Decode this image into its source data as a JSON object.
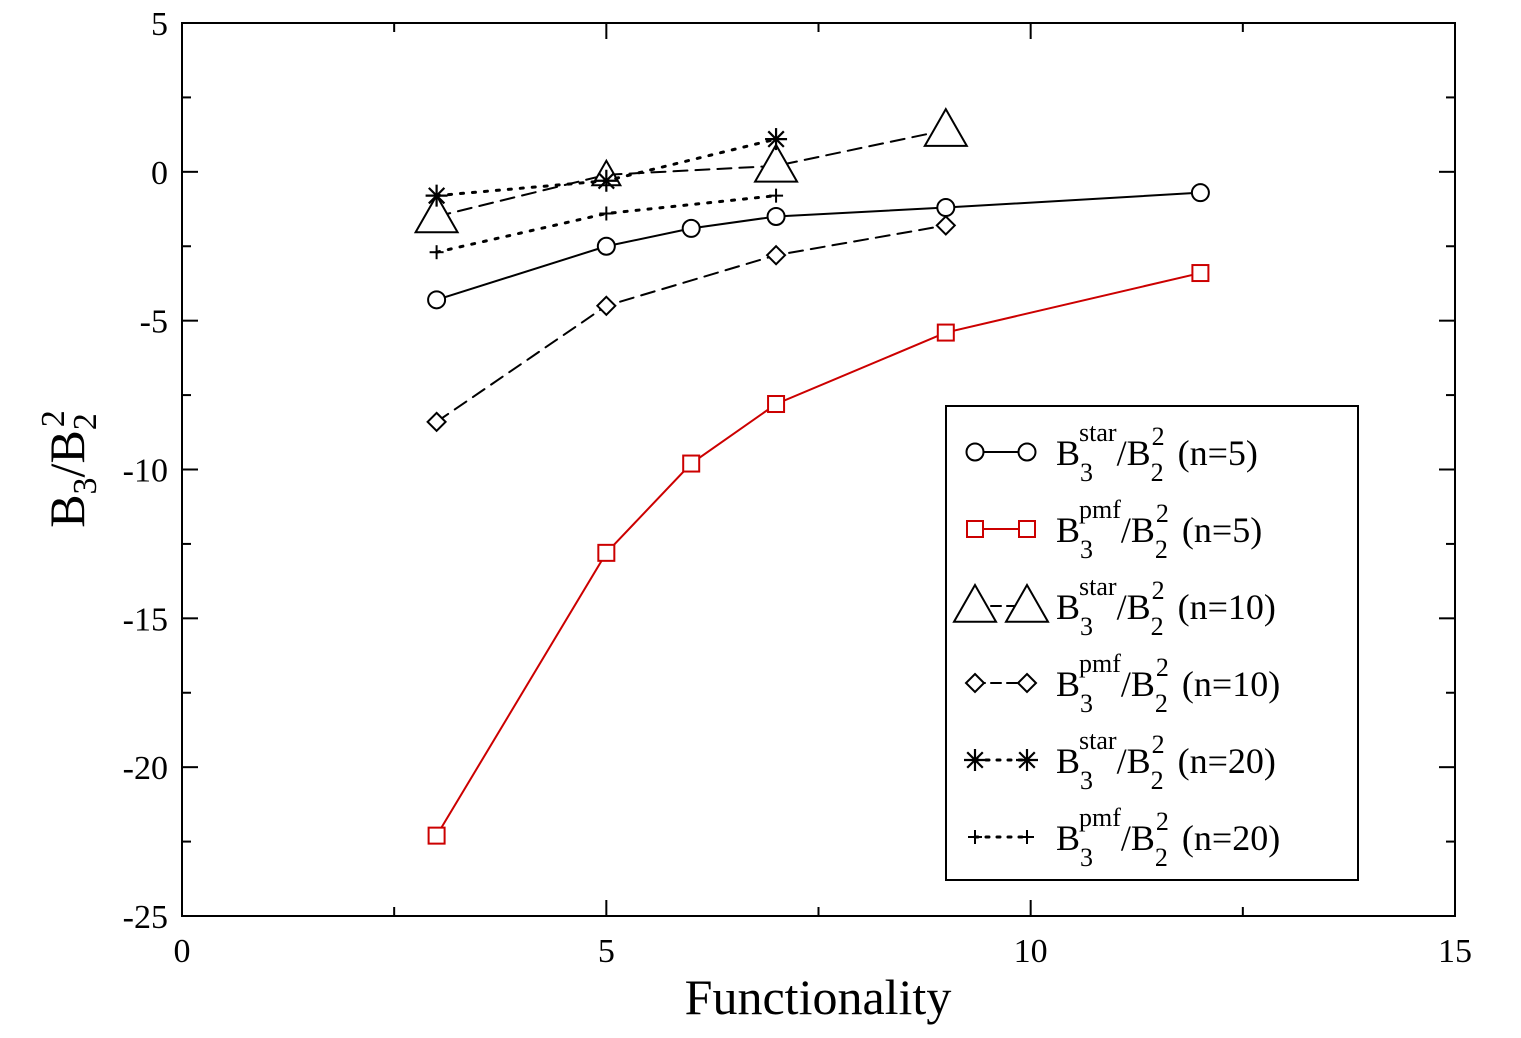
{
  "chart_data": {
    "type": "line",
    "xlabel": "Functionality",
    "ylabel": {
      "parts": [
        {
          "text": "B",
          "role": "base"
        },
        {
          "text": "3",
          "role": "sub"
        },
        {
          "text": "/B",
          "role": "base"
        },
        {
          "text": "2",
          "role": "sub"
        },
        {
          "text": "2",
          "role": "sup"
        }
      ]
    },
    "xlim": [
      0,
      15
    ],
    "ylim": [
      -25,
      5
    ],
    "x_major_ticks": [
      0,
      5,
      10,
      15
    ],
    "x_tick_labels": [
      "0",
      "5",
      "10",
      "15"
    ],
    "x_minor_ticks": [
      2.5,
      7.5,
      12.5
    ],
    "y_major_ticks": [
      5,
      0,
      -5,
      -10,
      -15,
      -20,
      -25
    ],
    "y_tick_labels": [
      "5",
      "0",
      "-5",
      "-10",
      "-15",
      "-20",
      "-25"
    ],
    "y_minor_ticks": [
      2.5,
      -2.5,
      -7.5,
      -12.5,
      -17.5,
      -22.5
    ],
    "grid": false,
    "legend_position": "bottom-right",
    "series": [
      {
        "name": "B3star/B2^2 (n=5)",
        "label": {
          "sup": "star",
          "tail": "(n=5)"
        },
        "color": "#000000",
        "marker": "circle",
        "line": "solid",
        "x": [
          3,
          5,
          6,
          7,
          9,
          12
        ],
        "values": [
          -4.3,
          -2.5,
          -1.9,
          -1.5,
          -1.2,
          -0.7
        ]
      },
      {
        "name": "B3pmf/B2^2 (n=5)",
        "label": {
          "sup": "pmf",
          "tail": "(n=5)"
        },
        "color": "#cc0000",
        "marker": "square",
        "line": "solid",
        "x": [
          3,
          5,
          6,
          7,
          9,
          12
        ],
        "values": [
          -22.3,
          -12.8,
          -9.8,
          -7.8,
          -5.4,
          -3.4
        ]
      },
      {
        "name": "B3star/B2^2 (n=10)",
        "label": {
          "sup": "star",
          "tail": " (n=10)"
        },
        "color": "#000000",
        "marker": "triangle",
        "line": "dashed",
        "x": [
          3,
          5,
          7,
          9
        ],
        "values": [
          -1.5,
          -0.1,
          0.2,
          1.4
        ]
      },
      {
        "name": "B3pmf/B2^2 (n=10)",
        "label": {
          "sup": "pmf",
          "tail": " (n=10)"
        },
        "color": "#000000",
        "marker": "diamond",
        "line": "dashed",
        "x": [
          3,
          5,
          7,
          9
        ],
        "values": [
          -8.4,
          -4.5,
          -2.8,
          -1.8
        ]
      },
      {
        "name": "B3star/B2^2 (n=20)",
        "label": {
          "sup": "star",
          "tail": " (n=20)"
        },
        "color": "#000000",
        "marker": "asterisk",
        "line": "dotted",
        "x": [
          3,
          5,
          7
        ],
        "values": [
          -0.8,
          -0.3,
          1.1
        ]
      },
      {
        "name": "B3pmf/B2^2 (n=20)",
        "label": {
          "sup": "pmf",
          "tail": " (n=20)"
        },
        "color": "#000000",
        "marker": "plus",
        "line": "dotted",
        "x": [
          3,
          5,
          7
        ],
        "values": [
          -2.7,
          -1.4,
          -0.8
        ]
      }
    ]
  }
}
